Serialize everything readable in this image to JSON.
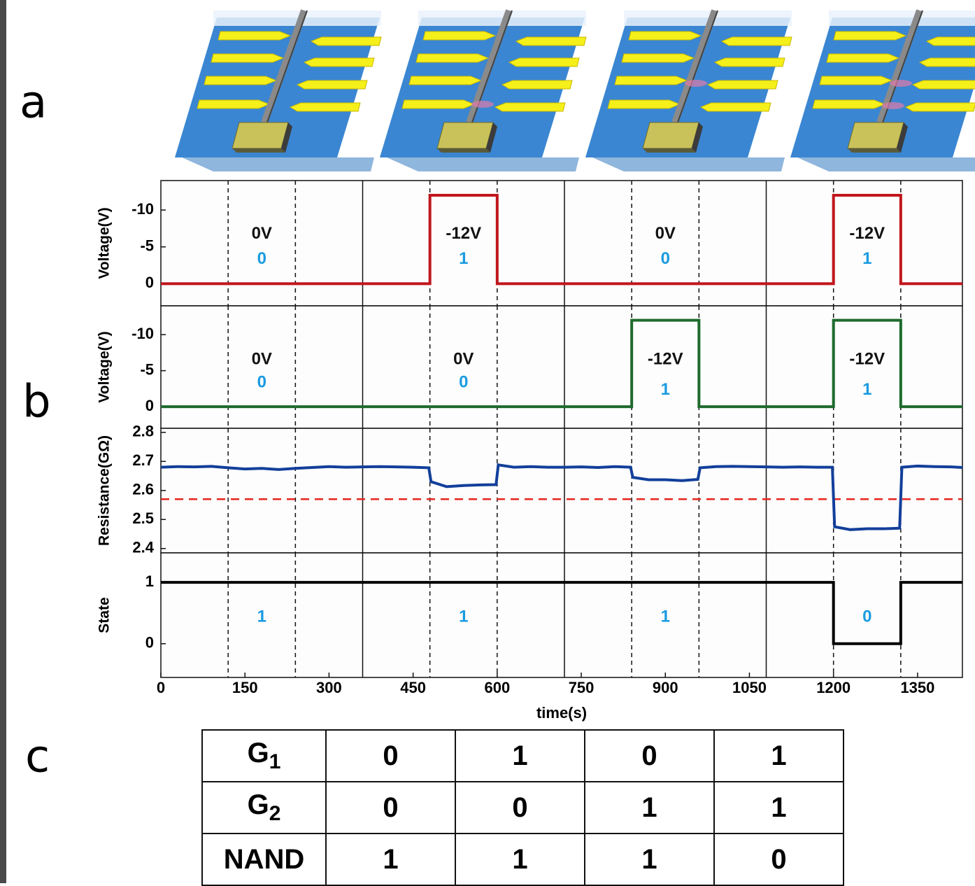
{
  "panel_labels": [
    "a",
    "b",
    "c"
  ],
  "chart_data": [
    {
      "type": "line",
      "ylabel": "Voltage(V)",
      "xlim": [
        0,
        1430
      ],
      "ylim": [
        3,
        -14
      ],
      "yticks": [
        -10,
        -5,
        0
      ],
      "boundaries": [
        360,
        720,
        1080
      ],
      "dashed_lines": [
        120,
        240,
        480,
        600,
        840,
        960,
        1200,
        1320
      ],
      "x": [
        0,
        480,
        480,
        600,
        600,
        1200,
        1200,
        1320,
        1320,
        1430
      ],
      "series": [
        {
          "color": "#c0161c",
          "values": [
            0,
            0,
            -12,
            -12,
            0,
            0,
            -12,
            -12,
            0,
            0
          ]
        }
      ],
      "annotations": [
        {
          "x": 180,
          "y": -6.7,
          "text": "0V",
          "color": "#111111"
        },
        {
          "x": 180,
          "y": -3.3,
          "text": "0",
          "color": "#1a9be0"
        },
        {
          "x": 540,
          "y": -6.7,
          "text": "-12V",
          "color": "#111111"
        },
        {
          "x": 540,
          "y": -3.3,
          "text": "1",
          "color": "#1a9be0"
        },
        {
          "x": 900,
          "y": -6.7,
          "text": "0V",
          "color": "#111111"
        },
        {
          "x": 900,
          "y": -3.3,
          "text": "0",
          "color": "#1a9be0"
        },
        {
          "x": 1260,
          "y": -6.7,
          "text": "-12V",
          "color": "#111111"
        },
        {
          "x": 1260,
          "y": -3.3,
          "text": "1",
          "color": "#1a9be0"
        }
      ]
    },
    {
      "type": "line",
      "ylabel": "Voltage(V)",
      "xlim": [
        0,
        1430
      ],
      "ylim": [
        3,
        -14
      ],
      "yticks": [
        -10,
        -5,
        0
      ],
      "boundaries": [
        360,
        720,
        1080
      ],
      "dashed_lines": [
        120,
        240,
        480,
        600,
        840,
        960,
        1200,
        1320
      ],
      "x": [
        0,
        840,
        840,
        960,
        960,
        1200,
        1200,
        1320,
        1320,
        1430
      ],
      "series": [
        {
          "color": "#1e6b2d",
          "values": [
            0,
            0,
            -12,
            -12,
            0,
            0,
            -12,
            -12,
            0,
            0
          ]
        }
      ],
      "annotations": [
        {
          "x": 180,
          "y": -6.5,
          "text": "0V",
          "color": "#111111"
        },
        {
          "x": 180,
          "y": -3.3,
          "text": "0",
          "color": "#1a9be0"
        },
        {
          "x": 540,
          "y": -6.5,
          "text": "0V",
          "color": "#111111"
        },
        {
          "x": 540,
          "y": -3.3,
          "text": "0",
          "color": "#1a9be0"
        },
        {
          "x": 900,
          "y": -6.5,
          "text": "-12V",
          "color": "#111111"
        },
        {
          "x": 900,
          "y": -2.3,
          "text": "1",
          "color": "#1a9be0"
        },
        {
          "x": 1260,
          "y": -6.5,
          "text": "-12V",
          "color": "#111111"
        },
        {
          "x": 1260,
          "y": -2.3,
          "text": "1",
          "color": "#1a9be0"
        }
      ]
    },
    {
      "type": "line",
      "ylabel": "Resistance(GΩ)",
      "xlim": [
        0,
        1430
      ],
      "ylim": [
        2.385,
        2.814
      ],
      "yticks": [
        2.4,
        2.5,
        2.6,
        2.7,
        2.8
      ],
      "boundaries": [
        360,
        720,
        1080
      ],
      "dashed_lines": [
        120,
        240,
        480,
        600,
        840,
        960,
        1200,
        1320
      ],
      "threshold": {
        "value": 2.57,
        "color": "#e8251f"
      },
      "x": [
        0,
        30,
        60,
        90,
        120,
        150,
        180,
        210,
        240,
        270,
        300,
        330,
        360,
        390,
        420,
        450,
        478,
        482,
        510,
        540,
        570,
        598,
        602,
        630,
        660,
        690,
        720,
        750,
        780,
        810,
        838,
        842,
        870,
        900,
        930,
        958,
        962,
        990,
        1020,
        1050,
        1080,
        1110,
        1140,
        1170,
        1198,
        1202,
        1230,
        1260,
        1290,
        1318,
        1322,
        1350,
        1380,
        1410,
        1430
      ],
      "series": [
        {
          "color": "#123f9a",
          "values": [
            2.68,
            2.682,
            2.681,
            2.683,
            2.678,
            2.674,
            2.676,
            2.672,
            2.676,
            2.679,
            2.682,
            2.68,
            2.681,
            2.682,
            2.681,
            2.68,
            2.678,
            2.63,
            2.613,
            2.617,
            2.619,
            2.62,
            2.688,
            2.68,
            2.682,
            2.68,
            2.68,
            2.681,
            2.679,
            2.682,
            2.68,
            2.645,
            2.637,
            2.637,
            2.634,
            2.638,
            2.678,
            2.682,
            2.683,
            2.682,
            2.681,
            2.68,
            2.681,
            2.68,
            2.68,
            2.475,
            2.465,
            2.468,
            2.468,
            2.47,
            2.68,
            2.684,
            2.682,
            2.681,
            2.679
          ]
        }
      ],
      "annotations": []
    },
    {
      "type": "line",
      "ylabel": "State",
      "xlim": [
        0,
        1430
      ],
      "ylim": [
        -0.55,
        1.48
      ],
      "yticks": [
        0,
        1
      ],
      "boundaries": [
        360,
        720,
        1080
      ],
      "dashed_lines": [
        120,
        240,
        480,
        600,
        840,
        960,
        1200,
        1320
      ],
      "x": [
        0,
        1200,
        1200,
        1320,
        1320,
        1430
      ],
      "series": [
        {
          "color": "#000000",
          "values": [
            1,
            1,
            0,
            0,
            1,
            1
          ]
        }
      ],
      "xticks": [
        0,
        150,
        300,
        450,
        600,
        750,
        900,
        1050,
        1200,
        1350
      ],
      "xlabel": "time(s)",
      "annotations": [
        {
          "x": 180,
          "y": 0.43,
          "text": "1",
          "color": "#1a9be0"
        },
        {
          "x": 540,
          "y": 0.43,
          "text": "1",
          "color": "#1a9be0"
        },
        {
          "x": 900,
          "y": 0.43,
          "text": "1",
          "color": "#1a9be0"
        },
        {
          "x": 1260,
          "y": 0.43,
          "text": "0",
          "color": "#1a9be0"
        }
      ]
    }
  ],
  "table": {
    "row_headers": [
      {
        "main": "G",
        "sub": "1"
      },
      {
        "main": "G",
        "sub": "2"
      },
      {
        "main": "NAND"
      }
    ],
    "rows": [
      [
        0,
        1,
        0,
        1
      ],
      [
        0,
        0,
        1,
        1
      ],
      [
        1,
        1,
        1,
        0
      ]
    ]
  }
}
